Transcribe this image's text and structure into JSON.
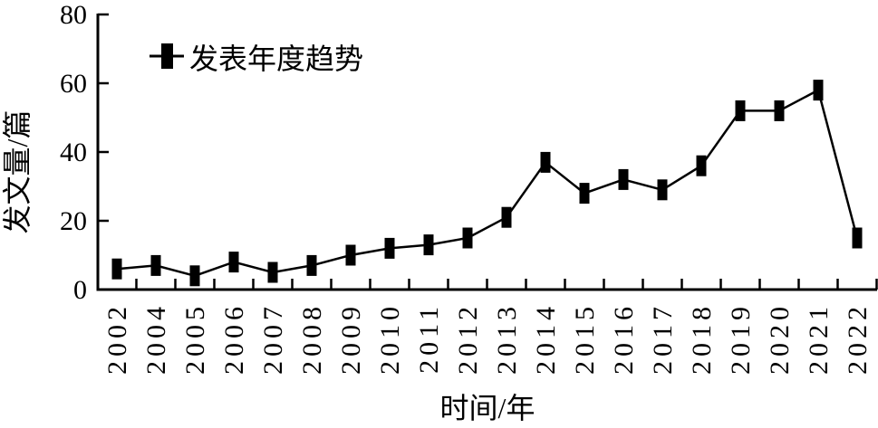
{
  "chart_data": {
    "type": "line",
    "title": "",
    "categories": [
      "2002",
      "2004",
      "2005",
      "2006",
      "2007",
      "2008",
      "2009",
      "2010",
      "2011",
      "2012",
      "2013",
      "2014",
      "2015",
      "2016",
      "2017",
      "2018",
      "2019",
      "2020",
      "2021",
      "2022"
    ],
    "series": [
      {
        "name": "发表年度趋势",
        "values": [
          6,
          7,
          4,
          8,
          5,
          7,
          10,
          12,
          13,
          15,
          21,
          37,
          28,
          32,
          29,
          36,
          52,
          52,
          58,
          15
        ],
        "color": "#000000",
        "marker": "filled-vertical-rectangle"
      }
    ],
    "xlabel": "时间/年",
    "ylabel": "发文量/篇",
    "ylim": [
      0,
      80
    ],
    "yticks": [
      0,
      20,
      40,
      60,
      80
    ],
    "grid": false,
    "legend": {
      "label": "发表年度趋势",
      "position": "top-left"
    },
    "axis_color": "#000000",
    "line_color": "#000000",
    "background_color": "#ffffff"
  }
}
